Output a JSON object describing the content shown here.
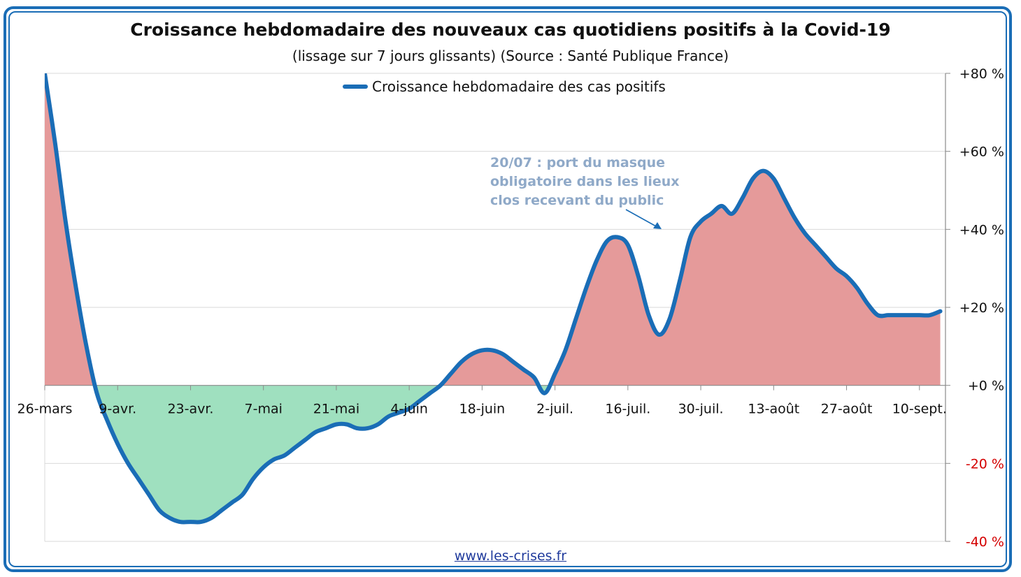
{
  "title": "Croissance hebdomadaire des nouveaux cas quotidiens positifs à la Covid-19",
  "subtitle": "(lissage sur 7 jours glissants) (Source : Santé Publique France)",
  "legend": "Croissance hebdomadaire des cas positifs",
  "annotation": [
    "20/07 : port du masque",
    "obligatoire dans les lieux",
    "clos recevant du public"
  ],
  "source": "www.les-crises.fr",
  "colors": {
    "line": "#1a6db6",
    "positive_fill": "#e59a9a",
    "negative_fill": "#9fe0bf",
    "annotation": "#8fa9c8",
    "frame": "#1a6db6",
    "negative_label": "#d40000"
  },
  "chart_data": {
    "type": "area",
    "title": "Croissance hebdomadaire des nouveaux cas quotidiens positifs à la Covid-19",
    "subtitle": "(lissage sur 7 jours glissants) (Source : Santé Publique France)",
    "series": [
      {
        "name": "Croissance hebdomadaire des cas positifs",
        "x": [
          "2020-03-26",
          "2020-03-28",
          "2020-03-30",
          "2020-04-01",
          "2020-04-03",
          "2020-04-05",
          "2020-04-07",
          "2020-04-09",
          "2020-04-11",
          "2020-04-13",
          "2020-04-15",
          "2020-04-17",
          "2020-04-19",
          "2020-04-21",
          "2020-04-23",
          "2020-04-25",
          "2020-04-27",
          "2020-04-29",
          "2020-05-01",
          "2020-05-03",
          "2020-05-05",
          "2020-05-07",
          "2020-05-09",
          "2020-05-11",
          "2020-05-13",
          "2020-05-15",
          "2020-05-17",
          "2020-05-19",
          "2020-05-21",
          "2020-05-23",
          "2020-05-25",
          "2020-05-27",
          "2020-05-29",
          "2020-05-31",
          "2020-06-02",
          "2020-06-04",
          "2020-06-06",
          "2020-06-08",
          "2020-06-10",
          "2020-06-12",
          "2020-06-14",
          "2020-06-16",
          "2020-06-18",
          "2020-06-20",
          "2020-06-22",
          "2020-06-24",
          "2020-06-26",
          "2020-06-28",
          "2020-06-30",
          "2020-07-02",
          "2020-07-04",
          "2020-07-06",
          "2020-07-08",
          "2020-07-10",
          "2020-07-12",
          "2020-07-14",
          "2020-07-16",
          "2020-07-18",
          "2020-07-20",
          "2020-07-22",
          "2020-07-24",
          "2020-07-26",
          "2020-07-28",
          "2020-07-30",
          "2020-08-01",
          "2020-08-03",
          "2020-08-05",
          "2020-08-07",
          "2020-08-09",
          "2020-08-11",
          "2020-08-13",
          "2020-08-15",
          "2020-08-17",
          "2020-08-19",
          "2020-08-21",
          "2020-08-23",
          "2020-08-25",
          "2020-08-27",
          "2020-08-29",
          "2020-08-31",
          "2020-09-02",
          "2020-09-04",
          "2020-09-06",
          "2020-09-08",
          "2020-09-10",
          "2020-09-12",
          "2020-09-14"
        ],
        "values": [
          80,
          62,
          42,
          25,
          10,
          -2,
          -9,
          -15,
          -20,
          -24,
          -28,
          -32,
          -34,
          -35,
          -35,
          -35,
          -34,
          -32,
          -30,
          -28,
          -24,
          -21,
          -19,
          -18,
          -16,
          -14,
          -12,
          -11,
          -10,
          -10,
          -11,
          -11,
          -10,
          -8,
          -7,
          -6,
          -4,
          -2,
          0,
          3,
          6,
          8,
          9,
          9,
          8,
          6,
          4,
          2,
          -2,
          3,
          9,
          17,
          25,
          32,
          37,
          38,
          36,
          28,
          18,
          13,
          17,
          27,
          38,
          42,
          44,
          46,
          44,
          48,
          53,
          55,
          53,
          48,
          43,
          39,
          36,
          33,
          30,
          28,
          25,
          21,
          18,
          18,
          18,
          18,
          18,
          18,
          19
        ]
      }
    ],
    "x_tick_labels": [
      "26-mars",
      "9-avr.",
      "23-avr.",
      "7-mai",
      "21-mai",
      "4-juin",
      "18-juin",
      "2-juil.",
      "16-juil.",
      "30-juil.",
      "13-août",
      "27-août",
      "10-sept."
    ],
    "y_tick_labels": [
      "+80 %",
      "+60 %",
      "+40 %",
      "+20 %",
      "+0 %",
      "-20 %",
      "-40 %"
    ],
    "y_ticks": [
      80,
      60,
      40,
      20,
      0,
      -20,
      -40
    ],
    "ylim": [
      -40,
      80
    ],
    "xlim": [
      "2020-03-26",
      "2020-09-15"
    ],
    "grid": true,
    "legend_position": "top-center",
    "y_axis_side": "right",
    "fill": "positive red, negative green"
  }
}
